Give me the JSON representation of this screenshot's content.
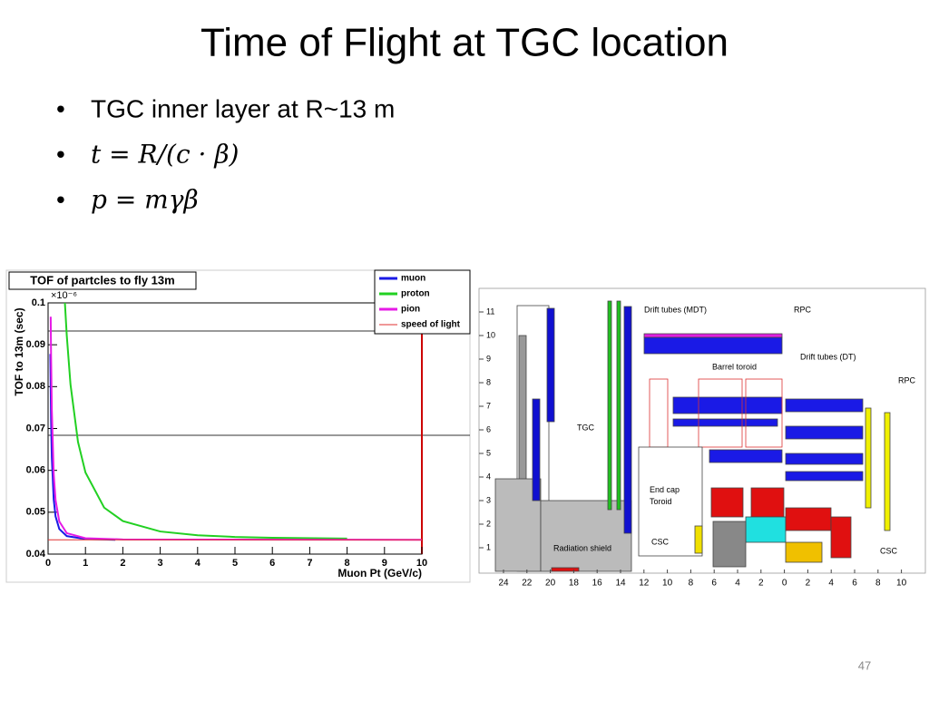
{
  "slide": {
    "title": "Time of Flight at TGC location",
    "bullets": [
      "TGC inner layer at R~13 m",
      "t = R/(c · β)",
      "p = mγβ"
    ],
    "page_number": "47"
  },
  "chart_data": {
    "type": "line",
    "title": "TOF of partcles to fly 13m",
    "x_label": "Muon Pt (GeV/c)",
    "y_label": "TOF to 13m (sec)",
    "y_exponent": "×10⁻⁶",
    "xlim": [
      0,
      10
    ],
    "ylim": [
      0.04,
      0.1
    ],
    "xticks": [
      0,
      1,
      2,
      3,
      4,
      5,
      6,
      7,
      8,
      9,
      10
    ],
    "yticks": [
      0.04,
      0.05,
      0.06,
      0.07,
      0.08,
      0.09,
      0.1
    ],
    "legend": "top-right",
    "series": [
      {
        "name": "muon",
        "color": "#1a1ae6",
        "x": [
          0.06,
          0.08,
          0.1,
          0.15,
          0.2,
          0.3,
          0.5,
          1,
          1.8
        ],
        "values": [
          0.0878,
          0.0718,
          0.0631,
          0.0531,
          0.049,
          0.046,
          0.0443,
          0.0436,
          0.0434
        ]
      },
      {
        "name": "proton",
        "color": "#22d022",
        "x": [
          0.45,
          0.5,
          0.6,
          0.8,
          1,
          1.5,
          2,
          3,
          4,
          5,
          6,
          8
        ],
        "values": [
          0.1,
          0.0922,
          0.0805,
          0.0668,
          0.0595,
          0.0511,
          0.0479,
          0.0454,
          0.0445,
          0.0441,
          0.0439,
          0.0437
        ]
      },
      {
        "name": "pion",
        "color": "#e61ae6",
        "x": [
          0.07,
          0.08,
          0.1,
          0.15,
          0.2,
          0.3,
          0.5,
          1,
          2,
          10
        ],
        "values": [
          0.0967,
          0.0872,
          0.0745,
          0.0592,
          0.0529,
          0.0478,
          0.045,
          0.0438,
          0.0435,
          0.0434
        ]
      },
      {
        "name": "speed of light",
        "color": "#e03030",
        "x": [
          0,
          10
        ],
        "values": [
          0.0434,
          0.0434
        ]
      }
    ]
  },
  "diagram": {
    "labels": [
      "Drift tubes (MDT)",
      "RPC",
      "Barrel toroid",
      "Drift tubes (DT)",
      "RPC",
      "TGC",
      "End cap Toroid",
      "CSC",
      "Radiation shield",
      "CSC"
    ],
    "y_axis": [
      "1",
      "2",
      "3",
      "4",
      "5",
      "6",
      "7",
      "8",
      "9",
      "10",
      "11"
    ],
    "x_axis": [
      "24",
      "22",
      "20",
      "18",
      "16",
      "14",
      "12",
      "10",
      "8",
      "6",
      "4",
      "2",
      "0",
      "2",
      "4",
      "6",
      "8",
      "10"
    ]
  }
}
